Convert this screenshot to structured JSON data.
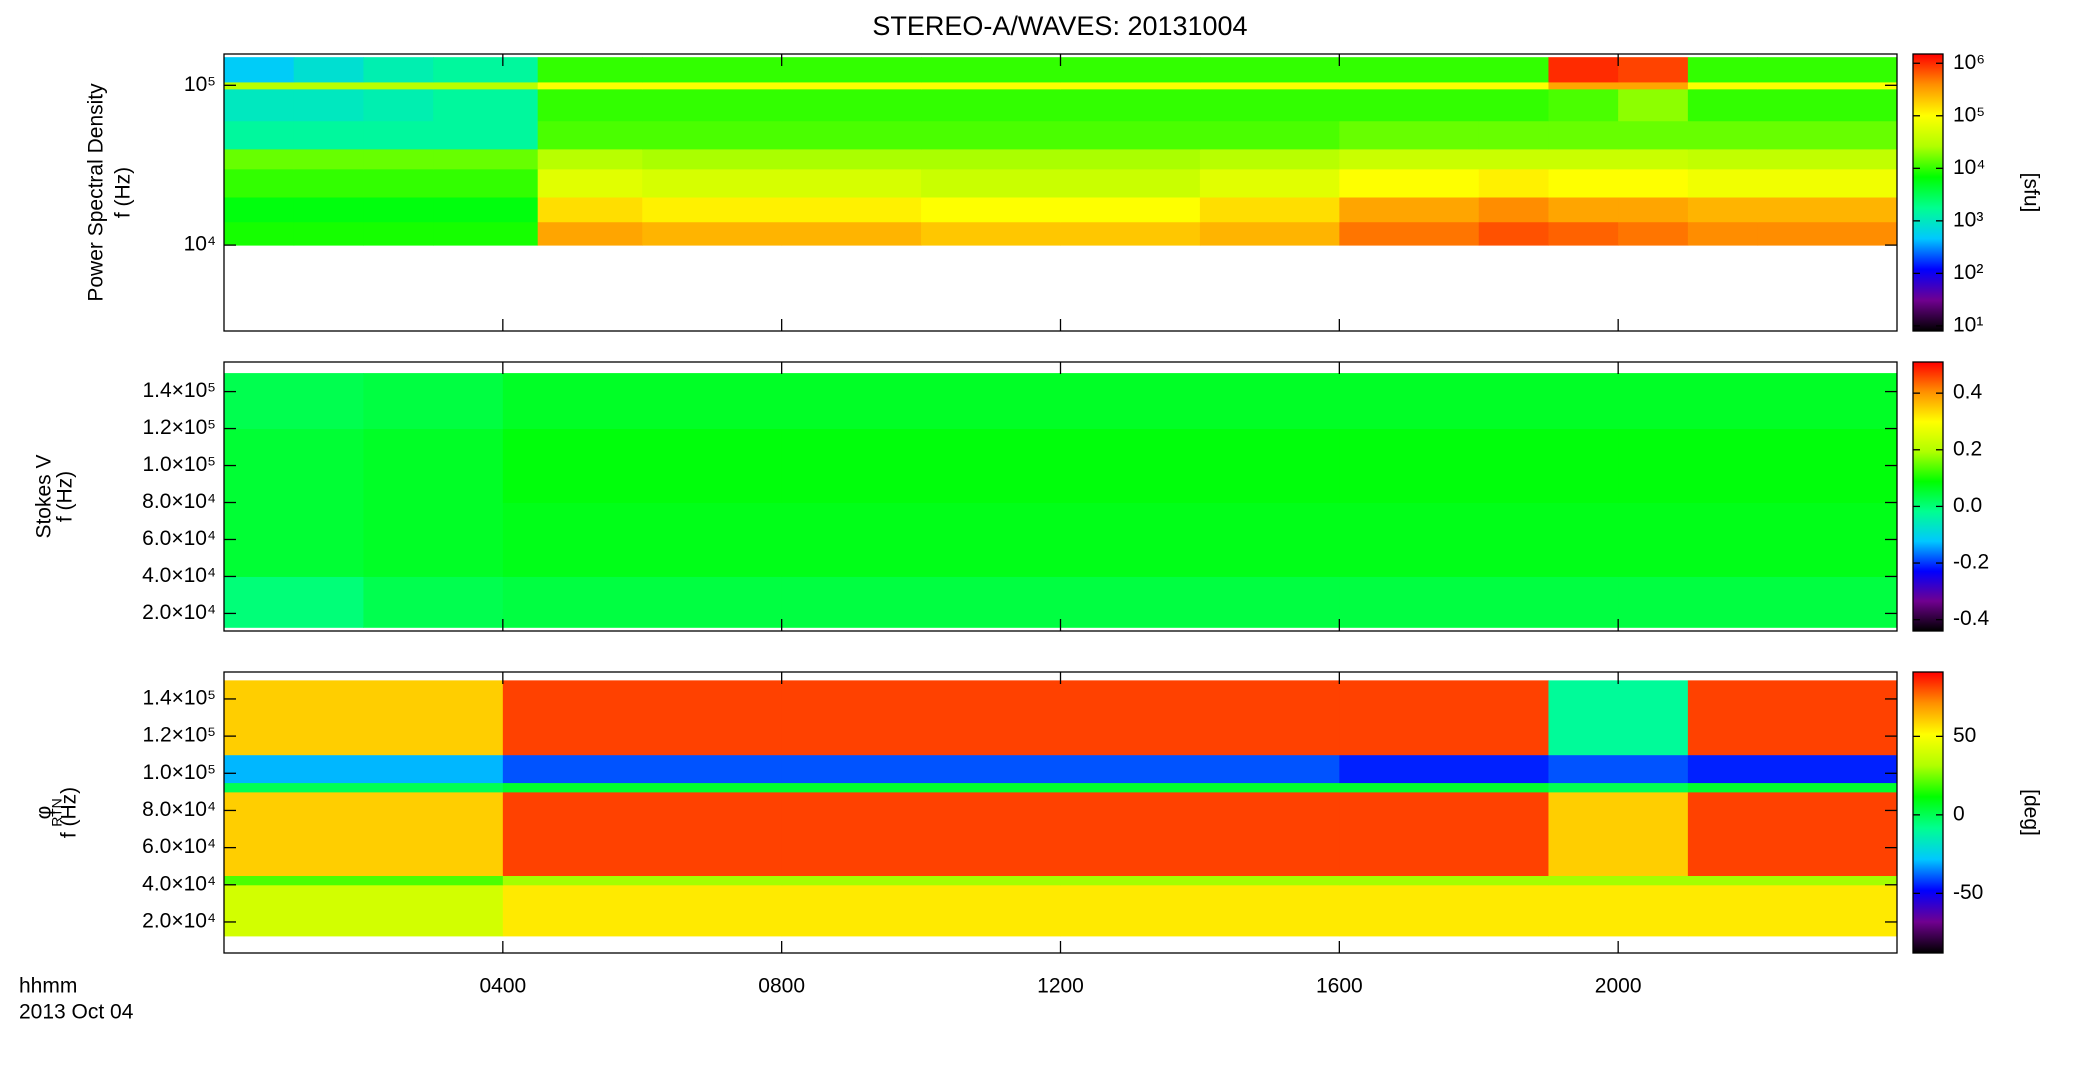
{
  "title": "STEREO-A/WAVES: 20131004",
  "xlabel": "hhmm",
  "date": "2013 Oct 04",
  "xlim": [
    0,
    24
  ],
  "xticks": [
    {
      "value": 4,
      "label": "0400"
    },
    {
      "value": 8,
      "label": "0800"
    },
    {
      "value": 12,
      "label": "1200"
    },
    {
      "value": 16,
      "label": "1600"
    },
    {
      "value": 20,
      "label": "2000"
    }
  ],
  "colormap": [
    "#000000",
    "#700090",
    "#0000ff",
    "#00c8ff",
    "#00ff90",
    "#00ff00",
    "#b0ff00",
    "#ffff00",
    "#ff9000",
    "#ff0000"
  ],
  "chart_data": [
    {
      "type": "heatmap",
      "ylabel": [
        "Power Spectral Density",
        "f (Hz)"
      ],
      "ylog": true,
      "ylim": [
        2900,
        157000
      ],
      "yticks": [
        {
          "value": 10000,
          "label": "10⁴"
        },
        {
          "value": 100000,
          "label": "10⁵"
        }
      ],
      "zlog": true,
      "zlim": [
        8,
        1500000
      ],
      "zlabel": "[sfu]",
      "zticks": [
        {
          "value": 10,
          "label": "10¹"
        },
        {
          "value": 100,
          "label": "10²"
        },
        {
          "value": 1000,
          "label": "10³"
        },
        {
          "value": 10000,
          "label": "10⁴"
        },
        {
          "value": 100000,
          "label": "10⁵"
        },
        {
          "value": 1000000,
          "label": "10⁶"
        }
      ],
      "x_edges": [
        0,
        1,
        2,
        3,
        4.5,
        6,
        8,
        10,
        12,
        14,
        16,
        18,
        19,
        20,
        21,
        22,
        24
      ],
      "y_edges": [
        10000,
        14000,
        20000,
        30000,
        40000,
        60000,
        95000,
        105000,
        150000
      ],
      "values": [
        [
          8000,
          8000,
          8000,
          8000,
          300000,
          250000,
          250000,
          200000,
          200000,
          250000,
          500000,
          700000,
          600000,
          500000,
          400000,
          400000
        ],
        [
          6000,
          6000,
          6000,
          6000,
          150000,
          120000,
          120000,
          100000,
          100000,
          150000,
          300000,
          400000,
          300000,
          300000,
          250000,
          250000
        ],
        [
          10000,
          10000,
          10000,
          10000,
          60000,
          50000,
          50000,
          40000,
          40000,
          60000,
          100000,
          120000,
          100000,
          100000,
          80000,
          80000
        ],
        [
          15000,
          15000,
          15000,
          15000,
          30000,
          25000,
          25000,
          25000,
          25000,
          30000,
          40000,
          40000,
          40000,
          40000,
          35000,
          35000
        ],
        [
          1500,
          1500,
          1500,
          1500,
          12000,
          12000,
          12000,
          12000,
          12000,
          12000,
          15000,
          15000,
          15000,
          15000,
          15000,
          15000
        ],
        [
          1000,
          1000,
          1200,
          1500,
          10000,
          10000,
          10000,
          10000,
          10000,
          10000,
          10000,
          10000,
          12000,
          20000,
          10000,
          10000
        ],
        [
          30000,
          30000,
          30000,
          30000,
          100000,
          100000,
          100000,
          100000,
          100000,
          100000,
          100000,
          100000,
          300000,
          300000,
          100000,
          100000
        ],
        [
          500,
          800,
          1200,
          1500,
          10000,
          10000,
          10000,
          10000,
          10000,
          10000,
          10000,
          10000,
          1000000,
          800000,
          10000,
          10000
        ]
      ]
    },
    {
      "type": "heatmap",
      "ylabel": [
        "Stokes V",
        "f (Hz)"
      ],
      "ylog": false,
      "ylim": [
        10500,
        156000
      ],
      "yticks": [
        {
          "value": 20000,
          "label": "2.0×10⁴"
        },
        {
          "value": 40000,
          "label": "4.0×10⁴"
        },
        {
          "value": 60000,
          "label": "6.0×10⁴"
        },
        {
          "value": 80000,
          "label": "8.0×10⁴"
        },
        {
          "value": 100000,
          "label": "1.0×10⁵"
        },
        {
          "value": 120000,
          "label": "1.2×10⁵"
        },
        {
          "value": 140000,
          "label": "1.4×10⁵"
        }
      ],
      "zlog": false,
      "zlim": [
        -0.44,
        0.51
      ],
      "zticks": [
        {
          "value": -0.4,
          "label": "-0.4"
        },
        {
          "value": -0.2,
          "label": "-0.2"
        },
        {
          "value": 0,
          "label": "0.0"
        },
        {
          "value": 0.2,
          "label": "0.2"
        },
        {
          "value": 0.4,
          "label": "0.4"
        }
      ],
      "x_edges": [
        0,
        2,
        4,
        8,
        12,
        16,
        20,
        24
      ],
      "y_edges": [
        12500,
        40000,
        80000,
        120000,
        150000
      ],
      "values": [
        [
          0.0,
          0.03,
          0.04,
          0.04,
          0.04,
          0.04,
          0.04
        ],
        [
          0.05,
          0.06,
          0.07,
          0.07,
          0.07,
          0.07,
          0.07
        ],
        [
          0.05,
          0.06,
          0.08,
          0.08,
          0.08,
          0.08,
          0.08
        ],
        [
          0.03,
          0.04,
          0.06,
          0.06,
          0.06,
          0.06,
          0.06
        ]
      ]
    },
    {
      "type": "heatmap",
      "ylabel": [
        "φ",
        "RTN",
        "f (Hz)"
      ],
      "ylog": false,
      "ylim": [
        3300,
        154500
      ],
      "yticks": [
        {
          "value": 20000,
          "label": "2.0×10⁴"
        },
        {
          "value": 40000,
          "label": "4.0×10⁴"
        },
        {
          "value": 60000,
          "label": "6.0×10⁴"
        },
        {
          "value": 80000,
          "label": "8.0×10⁴"
        },
        {
          "value": 100000,
          "label": "1.0×10⁵"
        },
        {
          "value": 120000,
          "label": "1.2×10⁵"
        },
        {
          "value": 140000,
          "label": "1.4×10⁵"
        }
      ],
      "zlog": false,
      "zlim": [
        -88,
        91
      ],
      "zlabel": "[deg]",
      "zticks": [
        -50,
        0,
        50
      ],
      "x_edges": [
        0,
        4,
        8,
        12,
        16,
        19,
        21,
        24
      ],
      "y_edges": [
        12500,
        40000,
        45000,
        90000,
        95000,
        110000,
        150000
      ],
      "values": [
        [
          40,
          55,
          55,
          55,
          55,
          55,
          55
        ],
        [
          20,
          30,
          30,
          30,
          30,
          30,
          30
        ],
        [
          60,
          82,
          82,
          82,
          82,
          60,
          82
        ],
        [
          0,
          5,
          5,
          5,
          5,
          0,
          5
        ],
        [
          -30,
          -40,
          -40,
          -40,
          -45,
          -40,
          -45
        ],
        [
          60,
          82,
          82,
          82,
          82,
          -10,
          82
        ]
      ]
    }
  ]
}
